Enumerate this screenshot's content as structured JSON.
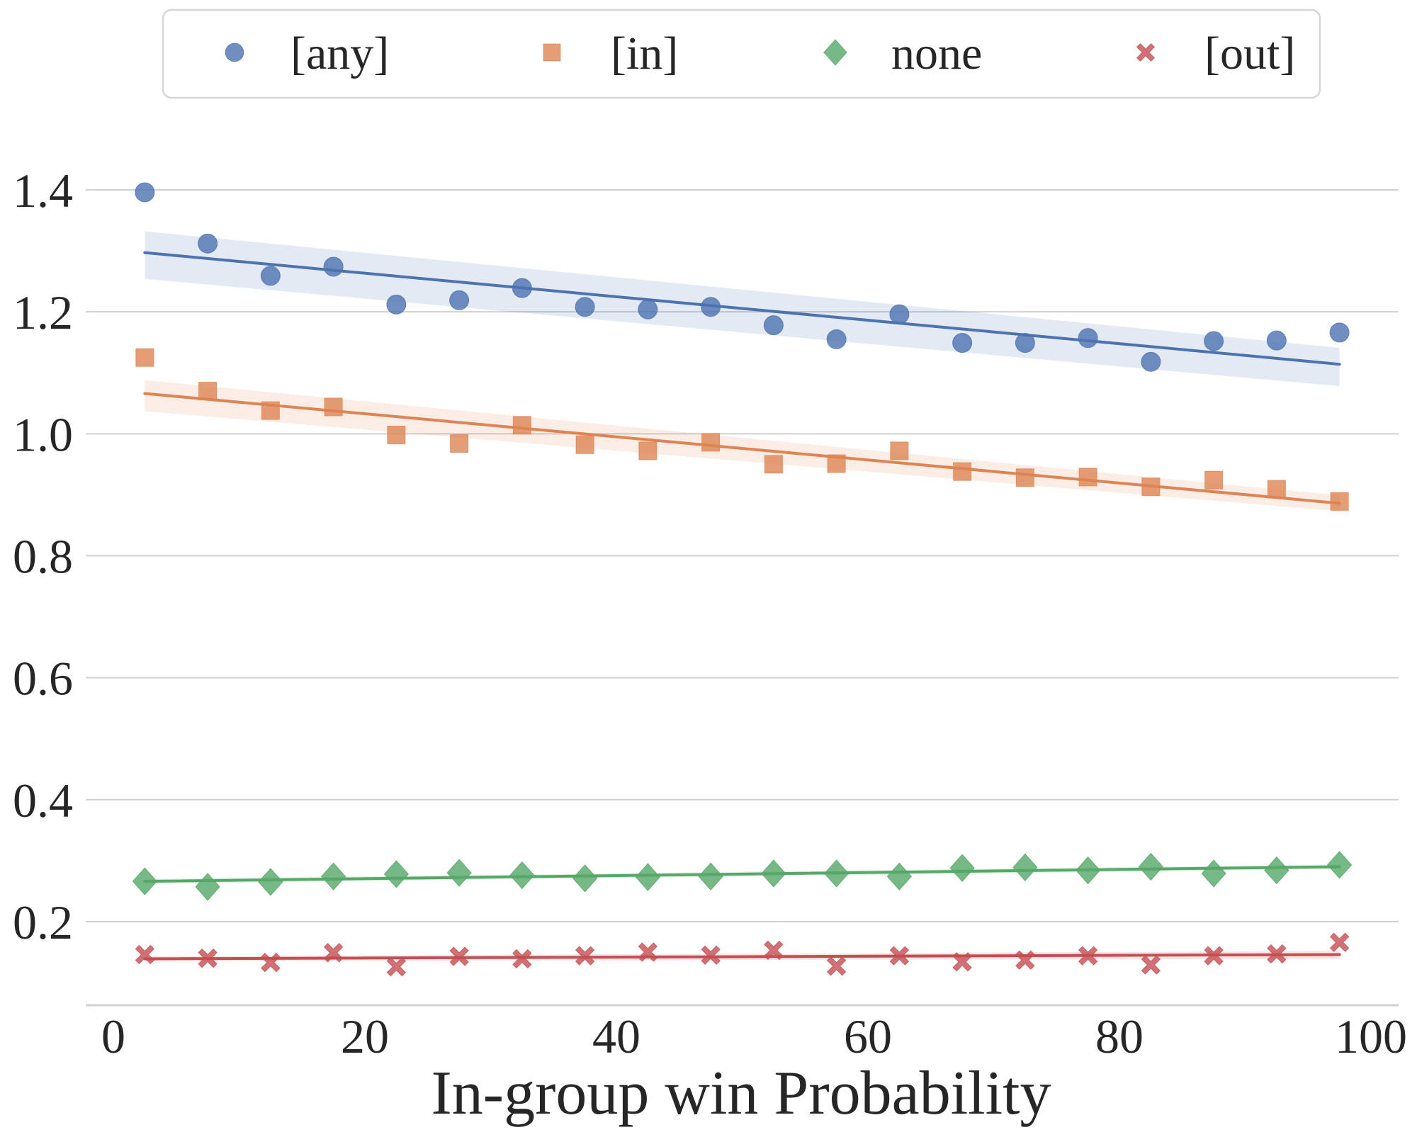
{
  "chart_data": {
    "type": "scatter",
    "title": "",
    "xlabel": "In-group win Probability",
    "ylabel": "",
    "xlim": [
      -2.2,
      102.5
    ],
    "ylim": [
      0.063,
      1.4
    ],
    "xticks": [
      0,
      20,
      40,
      60,
      80,
      100
    ],
    "xtick_labels": [
      "0",
      "20",
      "40",
      "60",
      "80",
      "100"
    ],
    "yticks": [
      0.2,
      0.4,
      0.6,
      0.8,
      1.0,
      1.2,
      1.4
    ],
    "ytick_labels": [
      "0.2",
      "0.4",
      "0.6",
      "0.8",
      "1.0",
      "1.2",
      "1.4"
    ],
    "grid": "horizontal",
    "legend_position": "top-center",
    "x": [
      2.5,
      7.5,
      12.5,
      17.5,
      22.5,
      27.5,
      32.5,
      37.5,
      42.5,
      47.5,
      52.5,
      57.5,
      62.5,
      67.5,
      72.5,
      77.5,
      82.5,
      87.5,
      92.5,
      97.5
    ],
    "series": [
      {
        "name": "[any]",
        "marker": "circle",
        "color": "#4c72b0",
        "values": [
          1.396,
          1.312,
          1.259,
          1.274,
          1.212,
          1.219,
          1.239,
          1.208,
          1.204,
          1.208,
          1.178,
          1.155,
          1.196,
          1.149,
          1.149,
          1.157,
          1.118,
          1.152,
          1.153,
          1.166
        ],
        "fit": {
          "start": [
            2.5,
            1.297
          ],
          "end": [
            97.5,
            1.114
          ]
        },
        "ci": {
          "start": [
            1.254,
            1.332
          ],
          "end": [
            1.078,
            1.141
          ]
        }
      },
      {
        "name": "[in]",
        "marker": "square",
        "color": "#dd8452",
        "values": [
          1.125,
          1.07,
          1.038,
          1.044,
          0.998,
          0.984,
          1.014,
          0.982,
          0.972,
          0.986,
          0.95,
          0.951,
          0.972,
          0.938,
          0.928,
          0.929,
          0.913,
          0.924,
          0.909,
          0.889
        ],
        "fit": {
          "start": [
            2.5,
            1.066
          ],
          "end": [
            97.5,
            0.886
          ]
        },
        "ci": {
          "start": [
            1.037,
            1.088
          ],
          "end": [
            0.873,
            0.899
          ]
        }
      },
      {
        "name": "none",
        "marker": "diamond",
        "color": "#55a868",
        "values": [
          0.266,
          0.257,
          0.265,
          0.274,
          0.278,
          0.28,
          0.276,
          0.271,
          0.273,
          0.274,
          0.279,
          0.279,
          0.274,
          0.288,
          0.289,
          0.284,
          0.29,
          0.279,
          0.284,
          0.293
        ],
        "fit": {
          "start": [
            2.5,
            0.266
          ],
          "end": [
            97.5,
            0.29
          ]
        },
        "ci": {
          "start": [
            0.262,
            0.27
          ],
          "end": [
            0.286,
            0.294
          ]
        }
      },
      {
        "name": "[out]",
        "marker": "x",
        "color": "#c44e52",
        "values": [
          0.146,
          0.14,
          0.133,
          0.149,
          0.126,
          0.143,
          0.139,
          0.144,
          0.15,
          0.145,
          0.153,
          0.127,
          0.144,
          0.134,
          0.137,
          0.144,
          0.129,
          0.144,
          0.147,
          0.166
        ],
        "fit": {
          "start": [
            2.5,
            0.139
          ],
          "end": [
            97.5,
            0.146
          ]
        },
        "ci": {
          "start": [
            0.135,
            0.143
          ],
          "end": [
            0.139,
            0.152
          ]
        }
      }
    ]
  },
  "colors": {
    "grid": "#d0d0d0",
    "text": "#262626",
    "legend_border": "#d6d6d6"
  }
}
